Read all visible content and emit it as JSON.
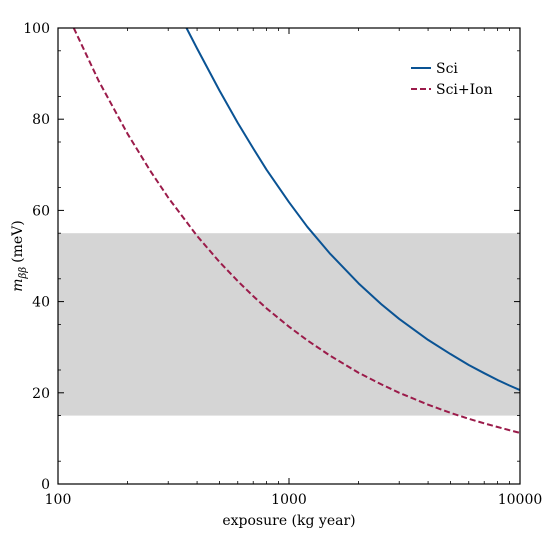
{
  "chart_data": {
    "type": "line",
    "xlabel": "exposure (kg year)",
    "ylabel_symbol": "m",
    "ylabel_subscript": "ββ",
    "ylabel_unit": "(meV)",
    "xscale": "log",
    "xlim": [
      100,
      10000
    ],
    "ylim": [
      0,
      100
    ],
    "x_ticks": [
      100,
      1000,
      10000
    ],
    "x_tick_labels": [
      "100",
      "1000",
      "10000"
    ],
    "y_ticks": [
      0,
      20,
      40,
      60,
      80,
      100
    ],
    "y_tick_labels": [
      "0",
      "20",
      "40",
      "60",
      "80",
      "100"
    ],
    "band": {
      "ymin": 15,
      "ymax": 55,
      "color": "#d5d5d5"
    },
    "legend_position": "top-right",
    "series": [
      {
        "name": "Sci",
        "color": "#0a5394",
        "dash": "solid",
        "x": [
          360,
          400,
          500,
          600,
          700,
          800,
          1000,
          1200,
          1500,
          2000,
          2500,
          3000,
          4000,
          5000,
          6000,
          7000,
          8000,
          9000,
          10000
        ],
        "y": [
          100,
          95.5,
          86.3,
          79.2,
          73.6,
          68.9,
          61.8,
          56.4,
          50.6,
          44,
          39.5,
          36.2,
          31.6,
          28.5,
          26.1,
          24.3,
          22.8,
          21.6,
          20.6
        ]
      },
      {
        "name": "Sci+Ion",
        "color": "#9b1b4a",
        "dash": "dashed",
        "x": [
          117,
          150,
          200,
          250,
          300,
          400,
          500,
          600,
          700,
          800,
          1000,
          1200,
          1500,
          2000,
          2500,
          3000,
          4000,
          5000,
          6000,
          7000,
          8000,
          9000,
          10000
        ],
        "y": [
          100,
          88.4,
          76.8,
          68.8,
          62.8,
          54.4,
          48.7,
          44.5,
          41.2,
          38.5,
          34.5,
          31.5,
          28.2,
          24.4,
          21.9,
          20,
          17.4,
          15.6,
          14.3,
          13.3,
          12.5,
          11.8,
          11.2
        ]
      }
    ]
  }
}
